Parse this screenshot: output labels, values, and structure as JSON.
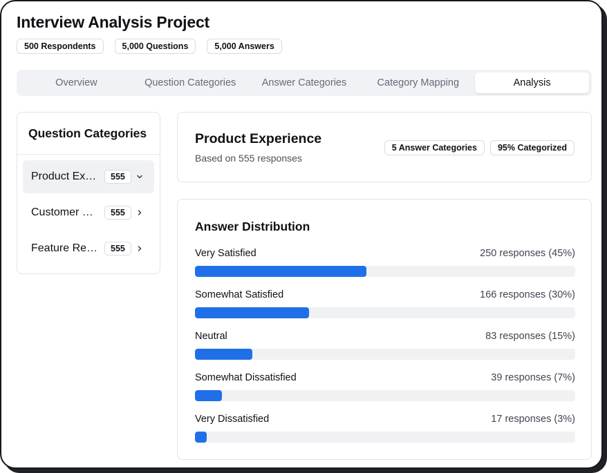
{
  "project": {
    "title": "Interview Analysis Project",
    "badges": [
      "500 Respondents",
      "5,000 Questions",
      "5,000 Answers"
    ]
  },
  "tabs": [
    {
      "label": "Overview",
      "active": false
    },
    {
      "label": "Question Categories",
      "active": false
    },
    {
      "label": "Answer Categories",
      "active": false
    },
    {
      "label": "Category Mapping",
      "active": false
    },
    {
      "label": "Analysis",
      "active": true
    }
  ],
  "sidebar": {
    "title": "Question Categories",
    "items": [
      {
        "label": "Product Experience",
        "count": "555",
        "icon": "chevron-down-icon",
        "expanded": true
      },
      {
        "label": "Customer Service",
        "count": "555",
        "icon": "chevron-right-icon",
        "expanded": false
      },
      {
        "label": "Feature Requests",
        "count": "555",
        "icon": "chevron-right-icon",
        "expanded": false
      }
    ]
  },
  "summary": {
    "title": "Product Experience",
    "subtitle": "Based on 555 responses",
    "badges": [
      "5 Answer Categories",
      "95% Categorized"
    ]
  },
  "distribution": {
    "title": "Answer Distribution",
    "rows": [
      {
        "label": "Very Satisfied",
        "value": "250 responses (45%)",
        "percent": 45
      },
      {
        "label": "Somewhat Satisfied",
        "value": "166 responses (30%)",
        "percent": 30
      },
      {
        "label": "Neutral",
        "value": "83 responses (15%)",
        "percent": 15
      },
      {
        "label": "Somewhat Dissatisfied",
        "value": "39 responses (7%)",
        "percent": 7
      },
      {
        "label": "Very Dissatisfied",
        "value": "17 responses (3%)",
        "percent": 3
      }
    ]
  },
  "colors": {
    "accent": "#1f70e8",
    "track": "#f0f1f3"
  }
}
